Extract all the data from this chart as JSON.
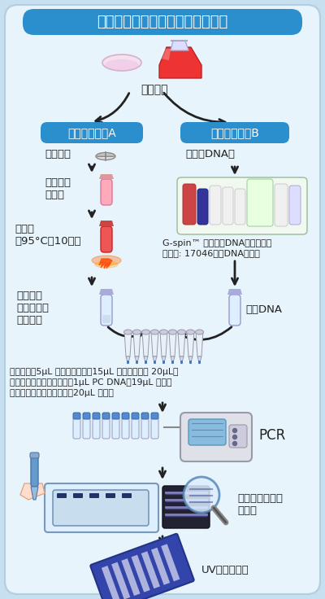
{
  "title": "マイコプラズマ検出プロトコール",
  "bg_outer": "#c8dff0",
  "bg_inner": "#e8f4fb",
  "title_bg": "#2b8fce",
  "title_color": "#ffffff",
  "protocol_a_bg": "#2b8fce",
  "protocol_b_bg": "#2b8fce",
  "protocol_a_label": "プロトコールA",
  "protocol_b_label": "プロトコールB",
  "cell_label": "培養細胞",
  "boil_method": "ボイル法",
  "genome_method": "ゲノムDNA法",
  "step_a1": "細胞回収\n＆洗浄",
  "step_a2": "ボイル\n（95°C、10分）",
  "step_a3": "クルード\nライセート\n（上清）",
  "step_b1_line1": "G-spin™ トータルDNAミニキット",
  "step_b1_line2": "（品番: 17046）でDNAを精製",
  "step_b2": "精製DNA",
  "sample_note1": "サンプル：5μL テンプレート＋15μL 蕨留水（最大 20μL）",
  "sample_note2": "ボジティブコントロール：1μL PC DNA＋19μL 蕨留水",
  "sample_note3": "ネガティブコントロール：20μL 蕨留水",
  "pcr_label": "PCR",
  "gel_label": "アガロースゲル\nで検出",
  "uv_label": "UV照射＆廃棄",
  "arrow_color": "#222222",
  "text_color": "#222222"
}
